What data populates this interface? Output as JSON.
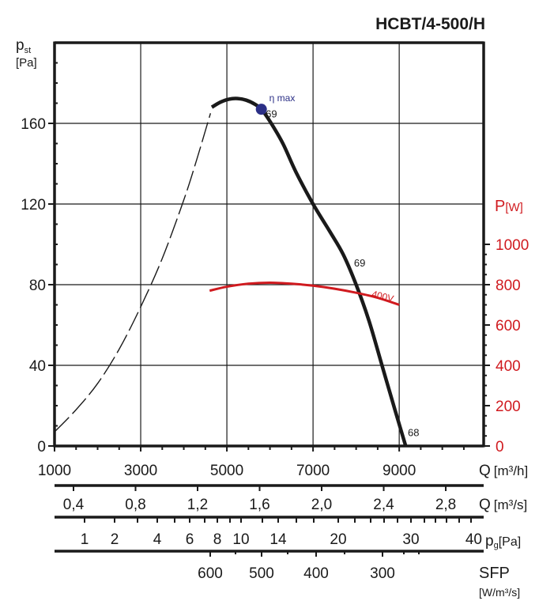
{
  "chart_data": {
    "type": "line",
    "title": "HCBT/4-500/H",
    "x": {
      "label": "Q",
      "unit": "[m³/h]",
      "range": [
        1000,
        10960
      ],
      "ticks": [
        1000,
        3000,
        5000,
        7000,
        9000
      ],
      "tick_labels": [
        "1000",
        "3000",
        "5000",
        "7000",
        "9000"
      ],
      "minor_step": 500
    },
    "y_left": {
      "label": "p",
      "label_sub": "st",
      "unit": "[Pa]",
      "range": [
        0,
        200
      ],
      "ticks": [
        0,
        40,
        80,
        120,
        160
      ],
      "tick_labels": [
        "0",
        "40",
        "80",
        "120",
        "160"
      ],
      "minor_step": 10
    },
    "y_right": {
      "label": "P",
      "unit": "[W]",
      "range": [
        0,
        2000
      ],
      "ticks": [
        0,
        200,
        400,
        600,
        800,
        1000
      ],
      "tick_labels": [
        "0",
        "200",
        "400",
        "600",
        "800",
        "1000"
      ],
      "minor_step": 50,
      "color": "#d01a1f"
    },
    "grid": true,
    "series": [
      {
        "name": "fan-curve",
        "axis": "left",
        "style": "solid",
        "color": "#1a1a1a",
        "points": [
          [
            4650,
            168
          ],
          [
            4850,
            170.5
          ],
          [
            5050,
            172
          ],
          [
            5250,
            172.3
          ],
          [
            5450,
            171.5
          ],
          [
            5650,
            169.5
          ],
          [
            5800,
            167
          ],
          [
            6000,
            161
          ],
          [
            6300,
            150
          ],
          [
            6600,
            136
          ],
          [
            7000,
            120
          ],
          [
            7400,
            106
          ],
          [
            7700,
            95
          ],
          [
            8000,
            80
          ],
          [
            8300,
            62
          ],
          [
            8600,
            40
          ],
          [
            8900,
            18
          ],
          [
            9150,
            0
          ]
        ]
      },
      {
        "name": "system-curve",
        "axis": "left",
        "style": "dashed",
        "color": "#1a1a1a",
        "points": [
          [
            1000,
            7
          ],
          [
            1500,
            18
          ],
          [
            2000,
            31
          ],
          [
            2500,
            48
          ],
          [
            3000,
            69
          ],
          [
            3500,
            93
          ],
          [
            4000,
            122
          ],
          [
            4300,
            142
          ],
          [
            4620,
            165
          ]
        ]
      },
      {
        "name": "power-curve",
        "axis": "right",
        "style": "solid",
        "color": "#d01a1f",
        "points": [
          [
            4600,
            770
          ],
          [
            5000,
            790
          ],
          [
            5500,
            805
          ],
          [
            6000,
            810
          ],
          [
            6500,
            805
          ],
          [
            7000,
            795
          ],
          [
            7500,
            780
          ],
          [
            8000,
            760
          ],
          [
            8500,
            735
          ],
          [
            9000,
            700
          ]
        ]
      }
    ],
    "markers": [
      {
        "name": "eta-max",
        "x": 5800,
        "y": 167,
        "label": "η max",
        "color": "#2b2f86"
      }
    ],
    "annotations": [
      {
        "text": "69",
        "x": 5900,
        "y": 163
      },
      {
        "text": "69",
        "x": 7950,
        "y": 89
      },
      {
        "text": "68",
        "x": 9200,
        "y": 5
      },
      {
        "text": "400V",
        "x": 8350,
        "y": 74,
        "color": "#d01a1f"
      }
    ],
    "secondary_scales": [
      {
        "name": "q-m3s",
        "label": "Q",
        "unit": "[m³/s]",
        "ticks": [
          0.4,
          0.8,
          1.2,
          1.6,
          2.0,
          2.4,
          2.8
        ],
        "tick_labels": [
          "0,4",
          "0,8",
          "1,2",
          "1,6",
          "2,0",
          "2,4",
          "2,8"
        ]
      },
      {
        "name": "pg",
        "label": "p",
        "label_sub": "g",
        "unit": "[Pa]",
        "ticks": [
          1,
          2,
          4,
          6,
          8,
          10,
          14,
          20,
          30,
          40
        ],
        "tick_labels": [
          "1",
          "2",
          "4",
          "6",
          "8",
          "10",
          "14",
          "20",
          "30",
          "40"
        ],
        "minor_ticks": [
          3,
          5,
          7,
          9,
          12,
          16,
          18,
          22,
          24,
          26,
          28,
          32,
          34,
          36,
          38
        ]
      },
      {
        "name": "sfp",
        "label": "SFP",
        "unit": "[W/m³/s]",
        "ticks": [
          600,
          500,
          400,
          300
        ],
        "tick_labels": [
          "600",
          "500",
          "400",
          "300"
        ],
        "minor_ticks": [
          550,
          450,
          350
        ]
      }
    ]
  }
}
